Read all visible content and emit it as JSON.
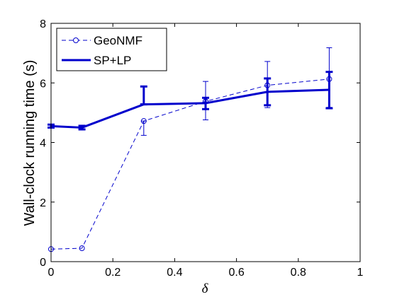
{
  "chart_data": {
    "type": "line",
    "title": "",
    "xlabel": "δ",
    "ylabel": "Wall-clock running time (s)",
    "xlim": [
      0,
      1
    ],
    "ylim": [
      0,
      8
    ],
    "xticks": [
      0,
      0.2,
      0.4,
      0.6,
      0.8,
      1
    ],
    "xtick_labels": [
      "0",
      "0.2",
      "0.4",
      "0.6",
      "0.8",
      "1"
    ],
    "yticks": [
      0,
      2,
      4,
      6,
      8
    ],
    "ytick_labels": [
      "0",
      "2",
      "4",
      "6",
      "8"
    ],
    "grid": false,
    "legend_position": "top-left",
    "series": [
      {
        "name": "GeoNMF",
        "color": "#0000cc",
        "line_style": "dashed",
        "marker": "circle",
        "x": [
          0,
          0.1,
          0.3,
          0.5,
          0.7,
          0.9
        ],
        "y": [
          0.42,
          0.45,
          4.72,
          5.38,
          5.92,
          6.13
        ],
        "err_low": [
          0.0,
          0.0,
          0.48,
          0.62,
          0.75,
          0.95
        ],
        "err_high": [
          0.0,
          0.0,
          0.0,
          0.67,
          0.8,
          1.05
        ]
      },
      {
        "name": "SP+LP",
        "color": "#0000cc",
        "line_style": "solid",
        "marker": "none",
        "x": [
          0,
          0.1,
          0.3,
          0.5,
          0.7,
          0.9
        ],
        "y": [
          4.55,
          4.5,
          5.28,
          5.32,
          5.7,
          5.77
        ],
        "err_low": [
          0.05,
          0.06,
          0.0,
          0.2,
          0.45,
          0.62
        ],
        "err_high": [
          0.05,
          0.06,
          0.6,
          0.18,
          0.45,
          0.6
        ]
      }
    ]
  }
}
